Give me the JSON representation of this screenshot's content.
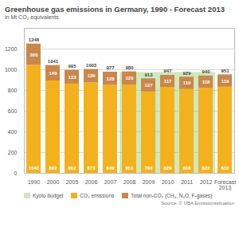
{
  "chart_data": {
    "type": "bar",
    "title": "Greenhouse gas emissions in Germany, 1990 - Forecast 2013",
    "subtitle": "in Mt CO₂ equivalents",
    "source": "Source: © UBA Emissionssituation",
    "categories": [
      "1990",
      "2000",
      "2005",
      "2006",
      "2007",
      "2008",
      "2009",
      "2010",
      "2011",
      "2012",
      "Forecast 2013"
    ],
    "series": [
      {
        "name": "CO₂ emissions",
        "color": "#f3b21d",
        "values": [
          1042,
          892,
          862,
          873,
          849,
          851,
          786,
          829,
          810,
          822,
          832
        ]
      },
      {
        "name": "Total non-CO₂ (CH₄, N₂O, F-gases)",
        "color": "#c9874b",
        "values": [
          206,
          149,
          133,
          130,
          128,
          129,
          127,
          117,
          119,
          118,
          119
        ]
      },
      {
        "name": "Kyoto budget",
        "color": "#cfe8bd",
        "type": "area",
        "values": [
          null,
          null,
          null,
          null,
          null,
          974,
          974,
          974,
          974,
          974,
          null
        ]
      }
    ],
    "totals": [
      1248,
      1041,
      995,
      1003,
      977,
      980,
      913,
      947,
      929,
      940,
      951
    ],
    "ylim": [
      0,
      1400
    ],
    "yticks": [
      0,
      200,
      400,
      600,
      800,
      1000,
      1200
    ],
    "stacked": true,
    "data_labels": true,
    "grid": true
  }
}
